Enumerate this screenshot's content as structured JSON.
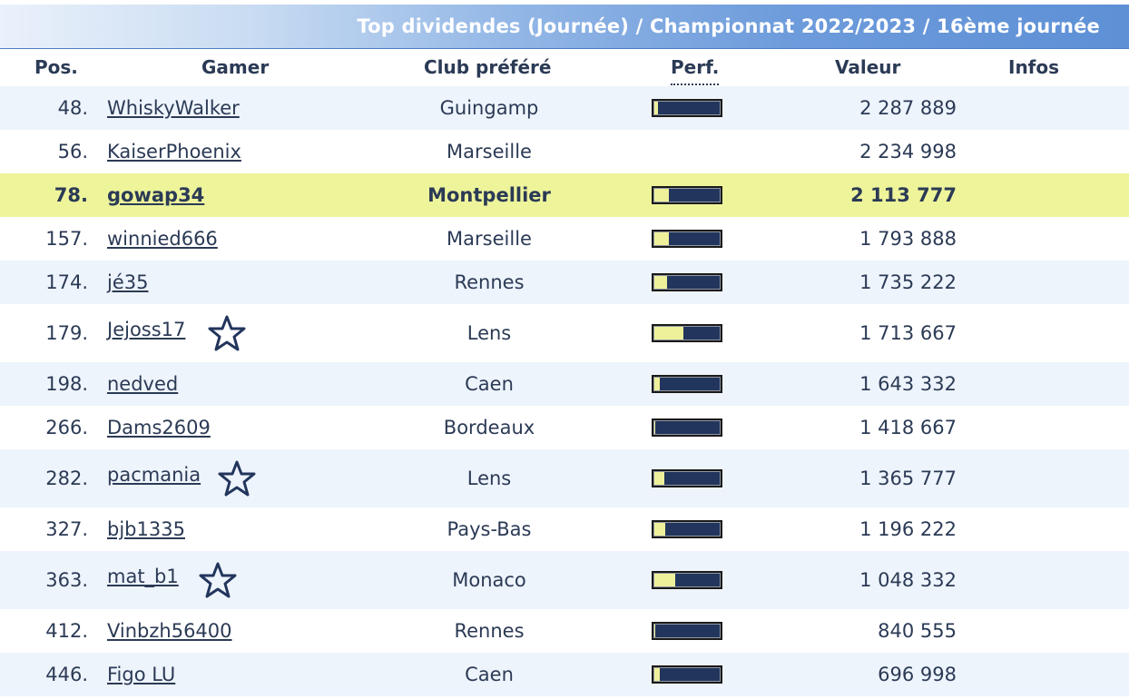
{
  "title": "Top dividendes (Journée) / Championnat 2022/2023 / 16ème journée",
  "headers": {
    "pos": "Pos.",
    "gamer": "Gamer",
    "club": "Club préféré",
    "perf": "Perf.",
    "valeur": "Valeur",
    "infos": "Infos"
  },
  "colors": {
    "title_gradient_end": "#5e90d6",
    "row_stripe": "#eef4fc",
    "row_highlight": "#eef49a",
    "text": "#2b3a55",
    "perf_bar_bg": "#22355c",
    "perf_bar_fill": "#eef19a"
  },
  "rows": [
    {
      "pos": "48.",
      "gamer": "WhiskyWalker",
      "club": "Guingamp",
      "perf": 0.05,
      "valeur": "2 287 889",
      "star": false,
      "highlight": false
    },
    {
      "pos": "56.",
      "gamer": "KaiserPhoenix",
      "club": "Marseille",
      "perf": null,
      "valeur": "2 234 998",
      "star": false,
      "highlight": false
    },
    {
      "pos": "78.",
      "gamer": "gowap34",
      "club": "Montpellier",
      "perf": 0.22,
      "valeur": "2 113 777",
      "star": false,
      "highlight": true
    },
    {
      "pos": "157.",
      "gamer": "winnied666",
      "club": "Marseille",
      "perf": 0.22,
      "valeur": "1 793 888",
      "star": false,
      "highlight": false
    },
    {
      "pos": "174.",
      "gamer": "jé35",
      "club": "Rennes",
      "perf": 0.2,
      "valeur": "1 735 222",
      "star": false,
      "highlight": false
    },
    {
      "pos": "179.",
      "gamer": "Jejoss17",
      "club": "Lens",
      "perf": 0.45,
      "valeur": "1 713 667",
      "star": true,
      "highlight": false
    },
    {
      "pos": "198.",
      "gamer": "nedved",
      "club": "Caen",
      "perf": 0.08,
      "valeur": "1 643 332",
      "star": false,
      "highlight": false
    },
    {
      "pos": "266.",
      "gamer": "Dams2609",
      "club": "Bordeaux",
      "perf": 0.02,
      "valeur": "1 418 667",
      "star": false,
      "highlight": false
    },
    {
      "pos": "282.",
      "gamer": "pacmania",
      "club": "Lens",
      "perf": 0.15,
      "valeur": "1 365 777",
      "star": true,
      "highlight": false
    },
    {
      "pos": "327.",
      "gamer": "bjb1335",
      "club": "Pays-Bas",
      "perf": 0.16,
      "valeur": "1 196 222",
      "star": false,
      "highlight": false
    },
    {
      "pos": "363.",
      "gamer": "mat_b1",
      "club": "Monaco",
      "perf": 0.32,
      "valeur": "1 048 332",
      "star": true,
      "highlight": false
    },
    {
      "pos": "412.",
      "gamer": "Vinbzh56400",
      "club": "Rennes",
      "perf": 0.02,
      "valeur": "840 555",
      "star": false,
      "highlight": false
    },
    {
      "pos": "446.",
      "gamer": "Figo LU",
      "club": "Caen",
      "perf": 0.08,
      "valeur": "696 998",
      "star": false,
      "highlight": false
    }
  ]
}
